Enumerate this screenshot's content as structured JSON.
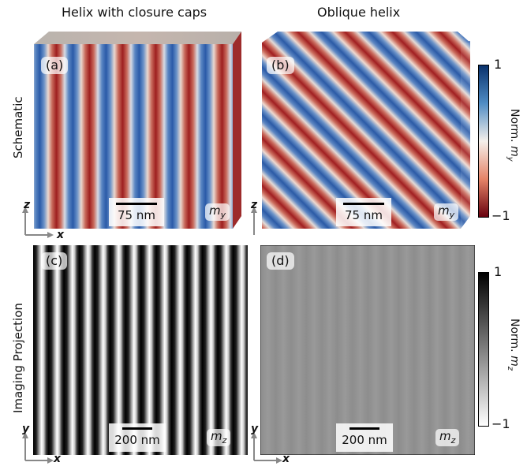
{
  "columns": {
    "left_title": "Helix with closure caps",
    "right_title": "Oblique helix"
  },
  "rows": {
    "top_label": "Schematic",
    "bottom_label": "Imaging Projection"
  },
  "panels": {
    "a": {
      "label": "(a)",
      "scale": "75 nm",
      "component": "m",
      "component_sub": "y"
    },
    "b": {
      "label": "(b)",
      "scale": "75 nm",
      "component": "m",
      "component_sub": "y"
    },
    "c": {
      "label": "(c)",
      "scale": "200 nm",
      "component": "m",
      "component_sub": "z"
    },
    "d": {
      "label": "(d)",
      "scale": "200 nm",
      "component": "m",
      "component_sub": "z"
    }
  },
  "axes": {
    "top": {
      "vertical": "z",
      "horizontal": "x"
    },
    "bottom": {
      "vertical": "y",
      "horizontal": "x"
    }
  },
  "colorbar_top": {
    "max": "1",
    "min": "−1",
    "label": "Norm. ",
    "label_var": "m",
    "label_sub": "y",
    "colors": {
      "high": "#08306b",
      "mid": "#f5f0eb",
      "low": "#67000d"
    }
  },
  "colorbar_bottom": {
    "max": "1",
    "min": "−1",
    "label": "Norm. ",
    "label_var": "m",
    "label_sub": "z",
    "colors": {
      "high": "#000000",
      "low": "#ffffff"
    }
  }
}
